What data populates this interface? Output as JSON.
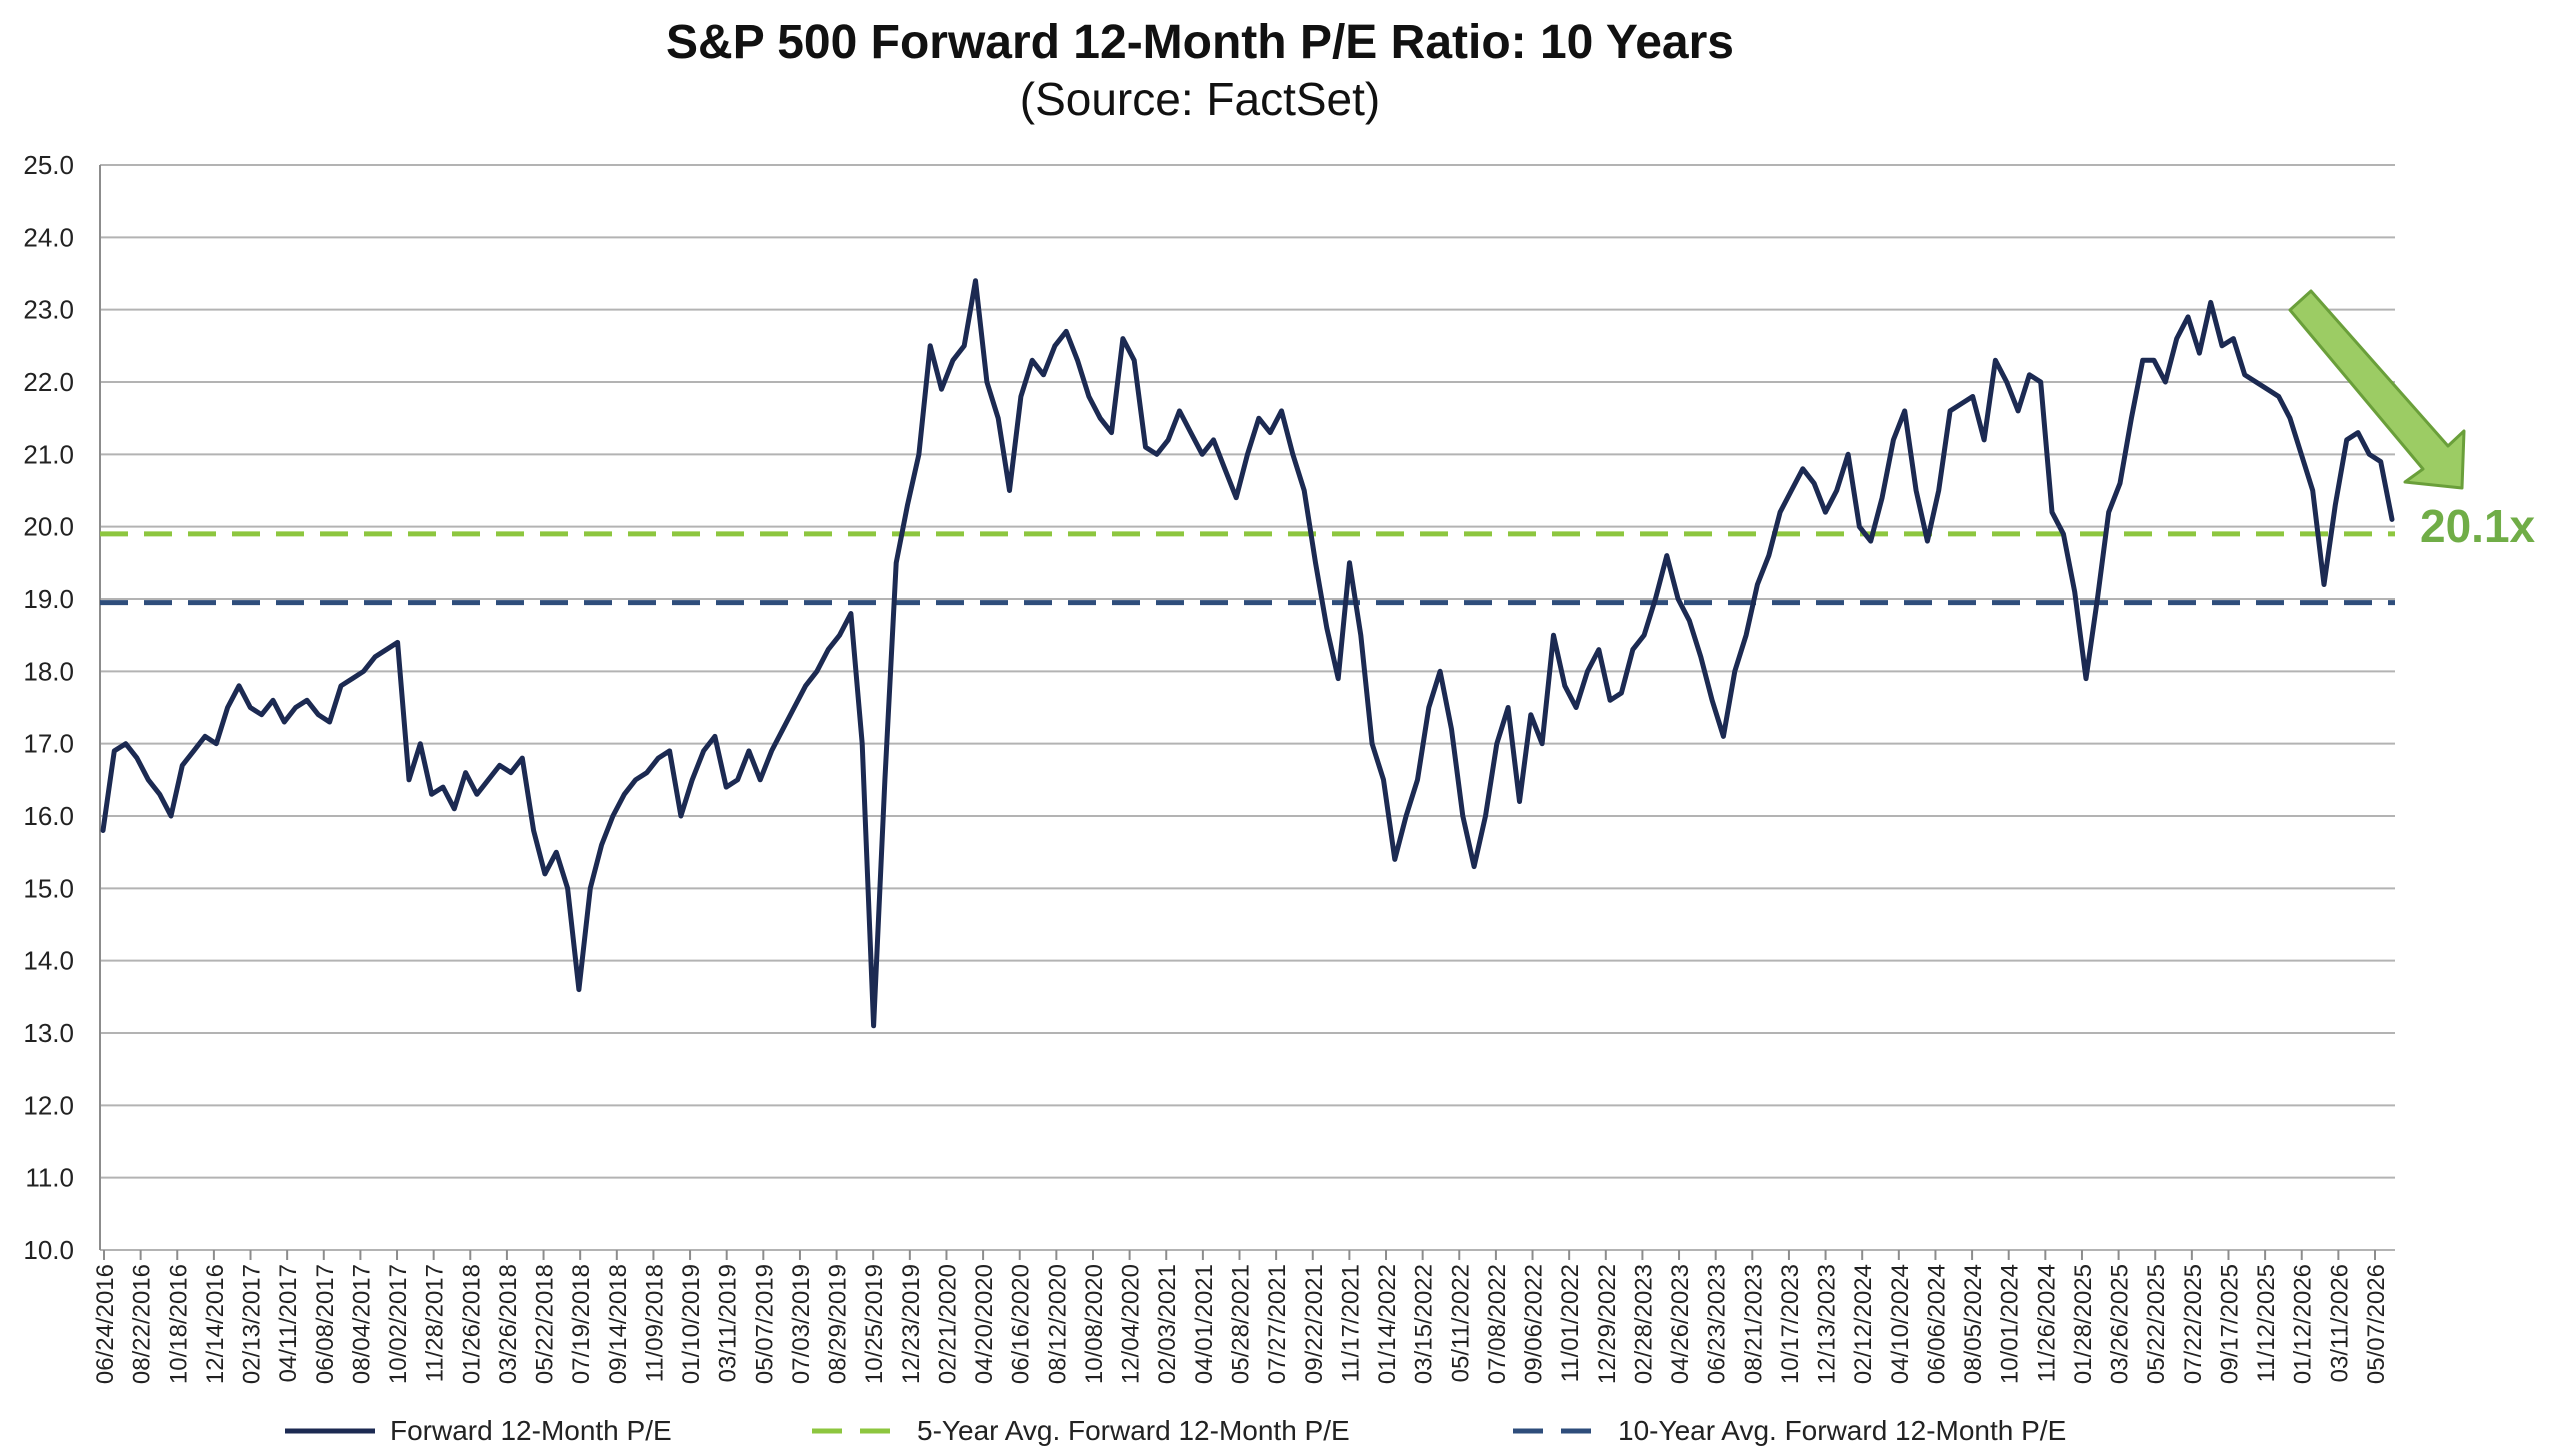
{
  "chart_data": {
    "type": "line",
    "title": "S&P 500 Forward 12-Month P/E Ratio: 10 Years",
    "subtitle": "(Source: FactSet)",
    "ylim": [
      10.0,
      25.0
    ],
    "y_ticks": [
      "25.0",
      "24.0",
      "23.0",
      "22.0",
      "21.0",
      "20.0",
      "19.0",
      "18.0",
      "17.0",
      "16.0",
      "15.0",
      "14.0",
      "13.0",
      "12.0",
      "11.0",
      "10.0"
    ],
    "x_ticks": [
      "06/24/2016",
      "08/22/2016",
      "10/18/2016",
      "12/14/2016",
      "02/13/2017",
      "04/11/2017",
      "06/08/2017",
      "08/04/2017",
      "10/02/2017",
      "11/28/2017",
      "01/26/2018",
      "03/26/2018",
      "05/22/2018",
      "07/19/2018",
      "09/14/2018",
      "11/09/2018",
      "01/10/2019",
      "03/11/2019",
      "05/07/2019",
      "07/03/2019",
      "08/29/2019",
      "10/25/2019",
      "12/23/2019",
      "02/21/2020",
      "04/20/2020",
      "06/16/2020",
      "08/12/2020",
      "10/08/2020",
      "12/04/2020",
      "02/03/2021",
      "04/01/2021",
      "05/28/2021",
      "07/27/2021",
      "09/22/2021",
      "11/17/2021",
      "01/14/2022",
      "03/15/2022",
      "05/11/2022",
      "07/08/2022",
      "09/06/2022",
      "11/01/2022",
      "12/29/2022",
      "02/28/2023",
      "04/26/2023",
      "06/23/2023",
      "08/21/2023",
      "10/17/2023",
      "12/13/2023",
      "02/12/2024",
      "04/10/2024",
      "06/06/2024",
      "08/05/2024",
      "10/01/2024",
      "11/26/2024",
      "01/28/2025",
      "03/26/2025",
      "05/22/2025",
      "07/22/2025",
      "09/17/2025",
      "11/12/2025",
      "01/12/2026",
      "03/11/2026",
      "05/07/2026"
    ],
    "series": [
      {
        "name": "Forward 12-Month P/E",
        "color": "#1c2a52",
        "style": "solid",
        "values": [
          15.8,
          16.9,
          17.0,
          16.8,
          16.5,
          16.3,
          16.0,
          16.7,
          16.9,
          17.1,
          17.0,
          17.5,
          17.8,
          17.5,
          17.4,
          17.6,
          17.3,
          17.5,
          17.6,
          17.4,
          17.3,
          17.8,
          17.9,
          18.0,
          18.2,
          18.3,
          18.4,
          16.5,
          17.0,
          16.3,
          16.4,
          16.1,
          16.6,
          16.3,
          16.5,
          16.7,
          16.6,
          16.8,
          15.8,
          15.2,
          15.5,
          15.0,
          13.6,
          15.0,
          15.6,
          16.0,
          16.3,
          16.5,
          16.6,
          16.8,
          16.9,
          16.0,
          16.5,
          16.9,
          17.1,
          16.4,
          16.5,
          16.9,
          16.5,
          16.9,
          17.2,
          17.5,
          17.8,
          18.0,
          18.3,
          18.5,
          18.8,
          17.0,
          13.1,
          16.5,
          19.5,
          20.3,
          21.0,
          22.5,
          21.9,
          22.3,
          22.5,
          23.4,
          22.0,
          21.5,
          20.5,
          21.8,
          22.3,
          22.1,
          22.5,
          22.7,
          22.3,
          21.8,
          21.5,
          21.3,
          22.6,
          22.3,
          21.1,
          21.0,
          21.2,
          21.6,
          21.3,
          21.0,
          21.2,
          20.8,
          20.4,
          21.0,
          21.5,
          21.3,
          21.6,
          21.0,
          20.5,
          19.5,
          18.6,
          17.9,
          19.5,
          18.5,
          17.0,
          16.5,
          15.4,
          16.0,
          16.5,
          17.5,
          18.0,
          17.2,
          16.0,
          15.3,
          16.0,
          17.0,
          17.5,
          16.2,
          17.4,
          17.0,
          18.5,
          17.8,
          17.5,
          18.0,
          18.3,
          17.6,
          17.7,
          18.3,
          18.5,
          19.0,
          19.6,
          19.0,
          18.7,
          18.2,
          17.6,
          17.1,
          18.0,
          18.5,
          19.2,
          19.6,
          20.2,
          20.5,
          20.8,
          20.6,
          20.2,
          20.5,
          21.0,
          20.0,
          19.8,
          20.4,
          21.2,
          21.6,
          20.5,
          19.8,
          20.5,
          21.6,
          21.7,
          21.8,
          21.2,
          22.3,
          22.0,
          21.6,
          22.1,
          22.0,
          20.2,
          19.9,
          19.1,
          17.9,
          19.0,
          20.2,
          20.6,
          21.5,
          22.3,
          22.3,
          22.0,
          22.6,
          22.9,
          22.4,
          23.1,
          22.5,
          22.6,
          22.1,
          22.0,
          21.9,
          21.8,
          21.5,
          21.0,
          20.5,
          19.2,
          20.3,
          21.2,
          21.3,
          21.0,
          20.9,
          20.1
        ]
      },
      {
        "name": "5-Year Avg. Forward 12-Month P/E",
        "color": "#8dc63f",
        "style": "dashed",
        "constant": 19.9
      },
      {
        "name": "10-Year Avg. Forward 12-Month P/E",
        "color": "#2e4d7b",
        "style": "dashed",
        "constant": 18.95
      }
    ],
    "annotation": {
      "text": "20.1x",
      "color": "#70ad47"
    },
    "legend_position": "bottom",
    "grid": true
  }
}
